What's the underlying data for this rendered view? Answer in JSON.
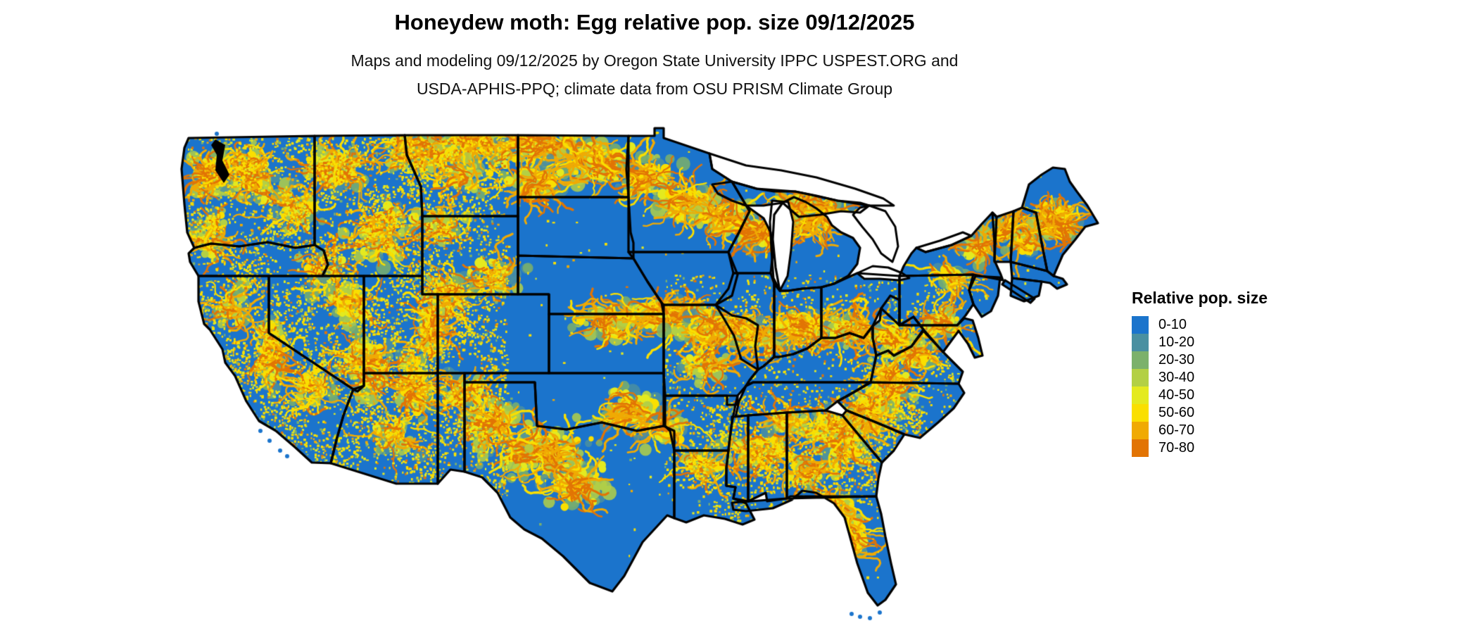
{
  "header": {
    "title": "Honeydew moth: Egg relative pop. size 09/12/2025",
    "subtitle_line1": "Maps and modeling 09/12/2025 by Oregon State University IPPC USPEST.ORG and",
    "subtitle_line2": "USDA-APHIS-PPQ; climate data from OSU PRISM Climate Group"
  },
  "legend": {
    "title": "Relative pop. size",
    "entries": [
      {
        "label": "0-10",
        "color": "#1B74CC"
      },
      {
        "label": "10-20",
        "color": "#4A90A1"
      },
      {
        "label": "20-30",
        "color": "#7CB16B"
      },
      {
        "label": "30-40",
        "color": "#B3D045"
      },
      {
        "label": "40-50",
        "color": "#E4EA1F"
      },
      {
        "label": "50-60",
        "color": "#FADF00"
      },
      {
        "label": "60-70",
        "color": "#F0AA03"
      },
      {
        "label": "70-80",
        "color": "#E27404"
      }
    ]
  },
  "map": {
    "land_base_color": "#1B74CC",
    "water_color": "#FFFFFF",
    "state_border_color": "#000000",
    "background_color": "#FFFFFF"
  }
}
